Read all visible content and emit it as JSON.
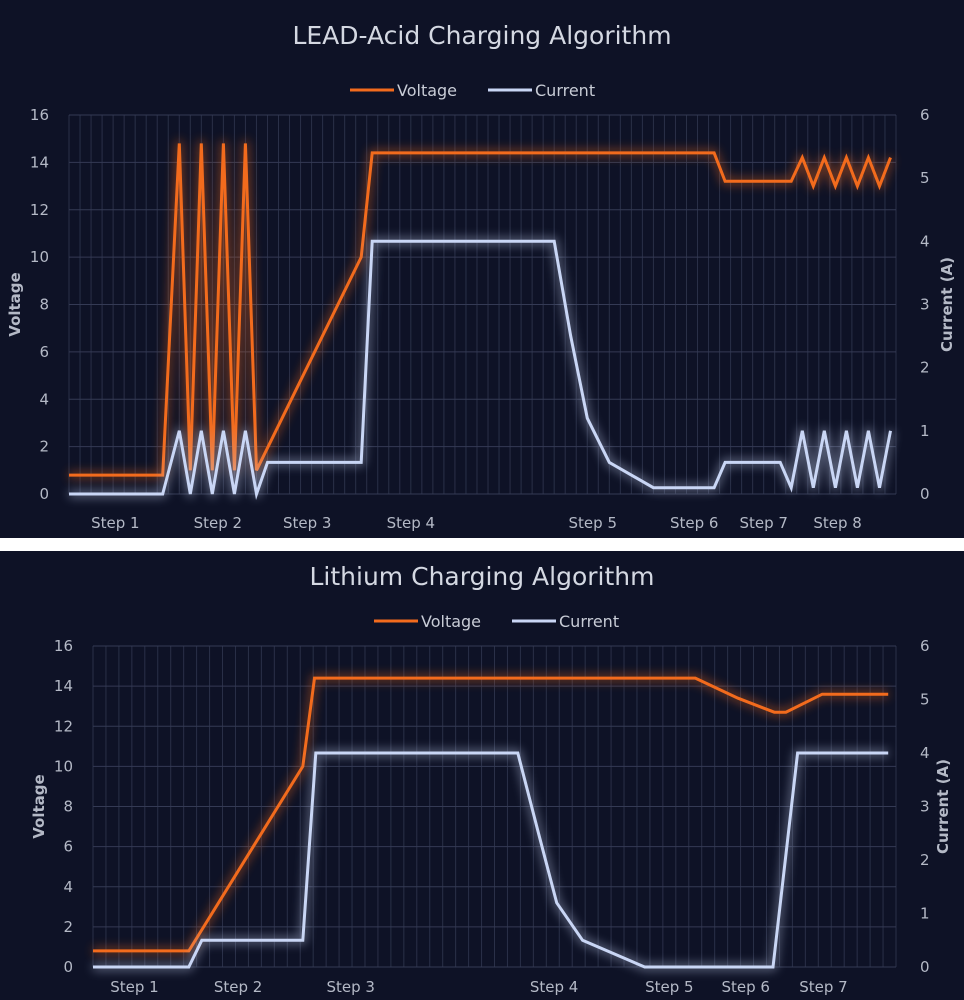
{
  "chart_data": [
    {
      "type": "line",
      "title": "LEAD-Acid Charging Algorithm",
      "ylabel": "Voltage",
      "y2label": "Current (A)",
      "xlim": [
        0,
        75
      ],
      "ylim": [
        0,
        16
      ],
      "y2lim": [
        0,
        6
      ],
      "yticks": [
        "0",
        "2",
        "4",
        "6",
        "8",
        "10",
        "12",
        "14",
        "16"
      ],
      "y2ticks": [
        "0",
        "1",
        "2",
        "3",
        "4",
        "5",
        "6"
      ],
      "grid": true,
      "legend": "top-center",
      "categories": [
        {
          "label": "Step 1",
          "x": 4.2
        },
        {
          "label": "Step 2",
          "x": 13.5
        },
        {
          "label": "Step 3",
          "x": 21.6
        },
        {
          "label": "Step 4",
          "x": 31
        },
        {
          "label": "Step 5",
          "x": 47.5
        },
        {
          "label": "Step 6",
          "x": 56.7
        },
        {
          "label": "Step 7",
          "x": 63
        },
        {
          "label": "Step 8",
          "x": 69.7
        }
      ],
      "series": [
        {
          "name": "Voltage",
          "axis": "left",
          "color": "#f26b1d",
          "points": [
            [
              0,
              0.8
            ],
            [
              8.5,
              0.8
            ],
            [
              10,
              14.8
            ],
            [
              11,
              1.0
            ],
            [
              12,
              14.8
            ],
            [
              13,
              1.0
            ],
            [
              14,
              14.8
            ],
            [
              15,
              1.0
            ],
            [
              16,
              14.8
            ],
            [
              17,
              1.0
            ],
            [
              26.5,
              10
            ],
            [
              27.5,
              14.4
            ],
            [
              58.5,
              14.4
            ],
            [
              59.5,
              13.2
            ],
            [
              65.5,
              13.2
            ],
            [
              66.5,
              14.2
            ],
            [
              67.5,
              13.0
            ],
            [
              68.5,
              14.2
            ],
            [
              69.5,
              13.0
            ],
            [
              70.5,
              14.2
            ],
            [
              71.5,
              13.0
            ],
            [
              72.5,
              14.2
            ],
            [
              73.5,
              13.0
            ],
            [
              74.5,
              14.2
            ]
          ]
        },
        {
          "name": "Current",
          "axis": "right",
          "color": "#c9d6f5",
          "points": [
            [
              0,
              0
            ],
            [
              8.5,
              0
            ],
            [
              10,
              1
            ],
            [
              11,
              0
            ],
            [
              12,
              1
            ],
            [
              13,
              0
            ],
            [
              14,
              1
            ],
            [
              15,
              0
            ],
            [
              16,
              1
            ],
            [
              17,
              0
            ],
            [
              18,
              0.5
            ],
            [
              26.5,
              0.5
            ],
            [
              27.5,
              4
            ],
            [
              44,
              4
            ],
            [
              45.5,
              2.5
            ],
            [
              47,
              1.2
            ],
            [
              49,
              0.5
            ],
            [
              53,
              0.1
            ],
            [
              58.5,
              0.1
            ],
            [
              59.5,
              0.5
            ],
            [
              64.5,
              0.5
            ],
            [
              65.5,
              0.1
            ],
            [
              66.5,
              1
            ],
            [
              67.5,
              0.1
            ],
            [
              68.5,
              1
            ],
            [
              69.5,
              0.1
            ],
            [
              70.5,
              1
            ],
            [
              71.5,
              0.1
            ],
            [
              72.5,
              1
            ],
            [
              73.5,
              0.1
            ],
            [
              74.5,
              1
            ]
          ]
        }
      ]
    },
    {
      "type": "line",
      "title": "Lithium Charging Algorithm",
      "ylabel": "Voltage",
      "y2label": "Current (A)",
      "xlim": [
        0,
        62
      ],
      "ylim": [
        0,
        16
      ],
      "y2lim": [
        0,
        6
      ],
      "yticks": [
        "0",
        "2",
        "4",
        "6",
        "8",
        "10",
        "12",
        "14",
        "16"
      ],
      "y2ticks": [
        "0",
        "1",
        "2",
        "3",
        "4",
        "5",
        "6"
      ],
      "grid": true,
      "legend": "top-center",
      "categories": [
        {
          "label": "Step 1",
          "x": 3.2
        },
        {
          "label": "Step 2",
          "x": 11.2
        },
        {
          "label": "Step 3",
          "x": 19.9
        },
        {
          "label": "Step 4",
          "x": 35.6
        },
        {
          "label": "Step 5",
          "x": 44.5
        },
        {
          "label": "Step 6",
          "x": 50.4
        },
        {
          "label": "Step 7",
          "x": 56.4
        }
      ],
      "series": [
        {
          "name": "Voltage",
          "axis": "left",
          "color": "#f26b1d",
          "points": [
            [
              0,
              0.8
            ],
            [
              7.4,
              0.8
            ],
            [
              16.2,
              10
            ],
            [
              17.1,
              14.4
            ],
            [
              46.5,
              14.4
            ],
            [
              49.8,
              13.4
            ],
            [
              52.6,
              12.7
            ],
            [
              53.5,
              12.7
            ],
            [
              56.3,
              13.6
            ],
            [
              61.4,
              13.6
            ]
          ]
        },
        {
          "name": "Current",
          "axis": "right",
          "color": "#c9d6f5",
          "points": [
            [
              0,
              0
            ],
            [
              7.4,
              0
            ],
            [
              8.4,
              0.5
            ],
            [
              16.2,
              0.5
            ],
            [
              17.2,
              4
            ],
            [
              32.8,
              4
            ],
            [
              34.4,
              2.5
            ],
            [
              35.8,
              1.2
            ],
            [
              37.8,
              0.5
            ],
            [
              42.6,
              0
            ],
            [
              52.5,
              0
            ],
            [
              54.4,
              4
            ],
            [
              61.4,
              4
            ]
          ]
        }
      ]
    }
  ]
}
